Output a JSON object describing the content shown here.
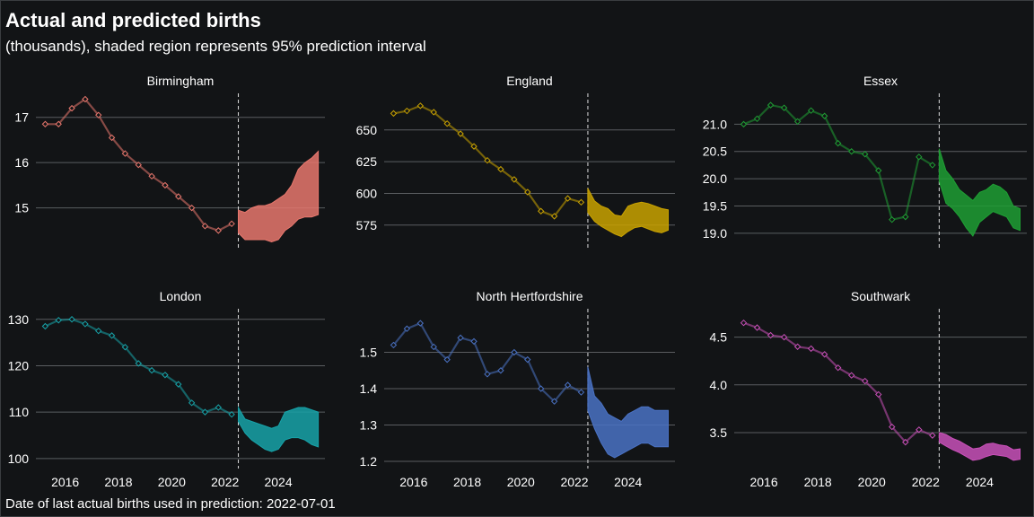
{
  "title": "Actual and predicted births",
  "subtitle": "(thousands), shaded region represents 95% prediction interval",
  "footnote": "Date of last actual births used in prediction: 2022-07-01",
  "chart_data": {
    "type": "line",
    "grid": true,
    "forecast_start": 2022.5,
    "x_ticks": [
      2016,
      2018,
      2020,
      2022,
      2024
    ],
    "panels": [
      {
        "name": "Birmingham",
        "color": "#e8776d",
        "ylim": [
          14.2,
          17.45
        ],
        "y_ticks": [
          15,
          16,
          17
        ],
        "y_tick_labels": [
          "15",
          "16",
          "17"
        ],
        "actual": [
          [
            2015.25,
            16.85
          ],
          [
            2015.75,
            16.85
          ],
          [
            2016.25,
            17.2
          ],
          [
            2016.75,
            17.4
          ],
          [
            2017.25,
            17.05
          ],
          [
            2017.75,
            16.55
          ],
          [
            2018.25,
            16.2
          ],
          [
            2018.75,
            15.95
          ],
          [
            2019.25,
            15.7
          ],
          [
            2019.75,
            15.5
          ],
          [
            2020.25,
            15.25
          ],
          [
            2020.75,
            15.0
          ],
          [
            2021.25,
            14.6
          ],
          [
            2021.75,
            14.5
          ],
          [
            2022.25,
            14.65
          ]
        ],
        "interval": {
          "x": [
            2022.5,
            2022.75,
            2023.0,
            2023.25,
            2023.5,
            2023.75,
            2024.0,
            2024.25,
            2024.5,
            2024.75,
            2025.0,
            2025.25,
            2025.5
          ],
          "lower": [
            14.45,
            14.3,
            14.3,
            14.3,
            14.3,
            14.25,
            14.3,
            14.5,
            14.6,
            14.75,
            14.8,
            14.8,
            14.85
          ],
          "upper": [
            14.95,
            14.9,
            15.0,
            15.05,
            15.05,
            15.1,
            15.2,
            15.3,
            15.5,
            15.85,
            16.0,
            16.1,
            16.25
          ]
        }
      },
      {
        "name": "England",
        "color": "#c9a200",
        "ylim": [
          560,
          676
        ],
        "y_ticks": [
          575,
          600,
          625,
          650
        ],
        "y_tick_labels": [
          "575",
          "600",
          "625",
          "650"
        ],
        "actual": [
          [
            2015.25,
            663
          ],
          [
            2015.75,
            665
          ],
          [
            2016.25,
            669
          ],
          [
            2016.75,
            664
          ],
          [
            2017.25,
            655
          ],
          [
            2017.75,
            647
          ],
          [
            2018.25,
            637
          ],
          [
            2018.75,
            626
          ],
          [
            2019.25,
            619
          ],
          [
            2019.75,
            611
          ],
          [
            2020.25,
            601
          ],
          [
            2020.75,
            586
          ],
          [
            2021.25,
            582
          ],
          [
            2021.75,
            596
          ],
          [
            2022.25,
            593
          ]
        ],
        "interval": {
          "x": [
            2022.5,
            2022.75,
            2023.0,
            2023.25,
            2023.5,
            2023.75,
            2024.0,
            2024.25,
            2024.5,
            2024.75,
            2025.0,
            2025.25,
            2025.5
          ],
          "lower": [
            585,
            578,
            574,
            571,
            568,
            566,
            570,
            573,
            574,
            572,
            570,
            569,
            571
          ],
          "upper": [
            604,
            594,
            590,
            588,
            583,
            582,
            590,
            592,
            593,
            592,
            590,
            588,
            587
          ]
        }
      },
      {
        "name": "Essex",
        "color": "#1f9e34",
        "ylim": [
          18.8,
          21.5
        ],
        "y_ticks": [
          19.0,
          19.5,
          20.0,
          20.5,
          21.0
        ],
        "y_tick_labels": [
          "19.0",
          "19.5",
          "20.0",
          "20.5",
          "21.0"
        ],
        "actual": [
          [
            2015.25,
            21.0
          ],
          [
            2015.75,
            21.1
          ],
          [
            2016.25,
            21.35
          ],
          [
            2016.75,
            21.3
          ],
          [
            2017.25,
            21.05
          ],
          [
            2017.75,
            21.25
          ],
          [
            2018.25,
            21.15
          ],
          [
            2018.75,
            20.65
          ],
          [
            2019.25,
            20.5
          ],
          [
            2019.75,
            20.45
          ],
          [
            2020.25,
            20.15
          ],
          [
            2020.75,
            19.25
          ],
          [
            2021.25,
            19.3
          ],
          [
            2021.75,
            20.4
          ],
          [
            2022.25,
            20.25
          ]
        ],
        "interval": {
          "x": [
            2022.5,
            2022.75,
            2023.0,
            2023.25,
            2023.5,
            2023.75,
            2024.0,
            2024.25,
            2024.5,
            2024.75,
            2025.0,
            2025.25,
            2025.5
          ],
          "lower": [
            19.95,
            19.55,
            19.45,
            19.3,
            19.1,
            18.95,
            19.2,
            19.3,
            19.4,
            19.35,
            19.3,
            19.1,
            19.05
          ],
          "upper": [
            20.55,
            20.15,
            20.0,
            19.8,
            19.7,
            19.6,
            19.75,
            19.8,
            19.9,
            19.85,
            19.75,
            19.5,
            19.45
          ]
        }
      },
      {
        "name": "London",
        "color": "#17a2a8",
        "ylim": [
          99,
          131.5
        ],
        "y_ticks": [
          100,
          110,
          120,
          130
        ],
        "y_tick_labels": [
          "100",
          "110",
          "120",
          "130"
        ],
        "actual": [
          [
            2015.25,
            128.5
          ],
          [
            2015.75,
            129.8
          ],
          [
            2016.25,
            130.0
          ],
          [
            2016.75,
            129.0
          ],
          [
            2017.25,
            127.5
          ],
          [
            2017.75,
            126.5
          ],
          [
            2018.25,
            124.0
          ],
          [
            2018.75,
            120.5
          ],
          [
            2019.25,
            119.0
          ],
          [
            2019.75,
            118.0
          ],
          [
            2020.25,
            116.0
          ],
          [
            2020.75,
            112.0
          ],
          [
            2021.25,
            110.0
          ],
          [
            2021.75,
            111.0
          ],
          [
            2022.25,
            109.5
          ]
        ],
        "interval": {
          "x": [
            2022.5,
            2022.75,
            2023.0,
            2023.25,
            2023.5,
            2023.75,
            2024.0,
            2024.25,
            2024.5,
            2024.75,
            2025.0,
            2025.25,
            2025.5
          ],
          "lower": [
            108.0,
            105.5,
            104.0,
            103.0,
            102.0,
            101.5,
            102.0,
            104.0,
            104.5,
            104.5,
            104.0,
            103.0,
            102.5
          ],
          "upper": [
            111.0,
            108.5,
            108.0,
            107.5,
            107.0,
            106.5,
            107.0,
            110.0,
            110.5,
            111.0,
            111.0,
            110.5,
            110.0
          ]
        }
      },
      {
        "name": "North Hertfordshire",
        "color": "#4a72c4",
        "ylim": [
          1.195,
          1.61
        ],
        "y_ticks": [
          1.2,
          1.3,
          1.4,
          1.5
        ],
        "y_tick_labels": [
          "1.2",
          "1.3",
          "1.4",
          "1.5"
        ],
        "actual": [
          [
            2015.25,
            1.52
          ],
          [
            2015.75,
            1.565
          ],
          [
            2016.25,
            1.58
          ],
          [
            2016.75,
            1.515
          ],
          [
            2017.25,
            1.48
          ],
          [
            2017.75,
            1.54
          ],
          [
            2018.25,
            1.53
          ],
          [
            2018.75,
            1.44
          ],
          [
            2019.25,
            1.45
          ],
          [
            2019.75,
            1.5
          ],
          [
            2020.25,
            1.48
          ],
          [
            2020.75,
            1.4
          ],
          [
            2021.25,
            1.365
          ],
          [
            2021.75,
            1.41
          ],
          [
            2022.25,
            1.39
          ]
        ],
        "interval": {
          "x": [
            2022.5,
            2022.75,
            2023.0,
            2023.25,
            2023.5,
            2023.75,
            2024.0,
            2024.25,
            2024.5,
            2024.75,
            2025.0,
            2025.25,
            2025.5
          ],
          "lower": [
            1.34,
            1.29,
            1.25,
            1.22,
            1.21,
            1.22,
            1.23,
            1.24,
            1.25,
            1.25,
            1.24,
            1.24,
            1.24
          ],
          "upper": [
            1.46,
            1.38,
            1.36,
            1.33,
            1.32,
            1.31,
            1.33,
            1.34,
            1.35,
            1.35,
            1.34,
            1.34,
            1.34
          ]
        }
      },
      {
        "name": "Southwark",
        "color": "#c850b8",
        "ylim": [
          3.18,
          4.76
        ],
        "y_ticks": [
          3.5,
          4.0,
          4.5
        ],
        "y_tick_labels": [
          "3.5",
          "4.0",
          "4.5"
        ],
        "actual": [
          [
            2015.25,
            4.65
          ],
          [
            2015.75,
            4.6
          ],
          [
            2016.25,
            4.52
          ],
          [
            2016.75,
            4.5
          ],
          [
            2017.25,
            4.4
          ],
          [
            2017.75,
            4.38
          ],
          [
            2018.25,
            4.32
          ],
          [
            2018.75,
            4.18
          ],
          [
            2019.25,
            4.1
          ],
          [
            2019.75,
            4.04
          ],
          [
            2020.25,
            3.9
          ],
          [
            2020.75,
            3.56
          ],
          [
            2021.25,
            3.4
          ],
          [
            2021.75,
            3.53
          ],
          [
            2022.25,
            3.47
          ]
        ],
        "interval": {
          "x": [
            2022.5,
            2022.75,
            2023.0,
            2023.25,
            2023.5,
            2023.75,
            2024.0,
            2024.25,
            2024.5,
            2024.75,
            2025.0,
            2025.25,
            2025.5
          ],
          "lower": [
            3.4,
            3.36,
            3.32,
            3.29,
            3.25,
            3.21,
            3.22,
            3.25,
            3.27,
            3.26,
            3.25,
            3.21,
            3.22
          ],
          "upper": [
            3.5,
            3.48,
            3.44,
            3.41,
            3.37,
            3.33,
            3.34,
            3.38,
            3.39,
            3.37,
            3.36,
            3.32,
            3.33
          ]
        }
      }
    ]
  }
}
